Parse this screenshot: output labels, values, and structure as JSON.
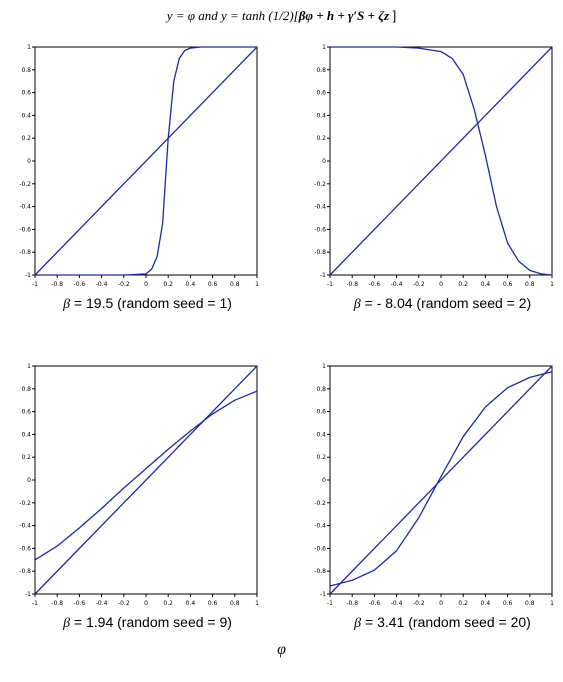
{
  "title": {
    "prefix": "y = φ and y = tanh (1/2)[",
    "expression": "βφ + h + γ′S + ζz",
    "suffix": " ]"
  },
  "x_variable": "φ",
  "colors": {
    "curve": "#1f2a9e",
    "axis": "#000000"
  },
  "chart_data": [
    {
      "type": "line",
      "beta_label": "β",
      "caption_text": " = 19.5 (random seed = 1)",
      "beta": 19.5,
      "seed": 1,
      "xlim": [
        -1,
        1
      ],
      "ylim": [
        -1,
        1
      ],
      "x_ticks": [
        "-1",
        "-0.8",
        "-0.6",
        "-0.4",
        "-0.2",
        "0",
        "0.2",
        "0.4",
        "0.6",
        "0.8",
        "1"
      ],
      "y_ticks": [
        "1",
        "0.8",
        "0.6",
        "0.4",
        "0.2",
        "0",
        "-0.2",
        "-0.4",
        "-0.6",
        "-0.8",
        "-1"
      ],
      "series": [
        {
          "x": [
            -1,
            1
          ],
          "y": [
            -1,
            1
          ]
        },
        {
          "x": [
            -1,
            -0.2,
            0,
            0.05,
            0.1,
            0.15,
            0.2,
            0.25,
            0.3,
            0.35,
            0.4,
            0.5,
            1
          ],
          "y": [
            -1,
            -1,
            -0.99,
            -0.95,
            -0.84,
            -0.55,
            0.2,
            0.7,
            0.9,
            0.97,
            0.99,
            1,
            1
          ]
        }
      ]
    },
    {
      "type": "line",
      "beta_label": "β",
      "caption_text": " = - 8.04 (random seed = 2)",
      "beta": -8.04,
      "seed": 2,
      "xlim": [
        -1,
        1
      ],
      "ylim": [
        -1,
        1
      ],
      "x_ticks": [
        "-1",
        "-0.8",
        "-0.6",
        "-0.4",
        "-0.2",
        "0",
        "0.2",
        "0.4",
        "0.6",
        "0.8",
        "1"
      ],
      "y_ticks": [
        "1",
        "0.8",
        "0.6",
        "0.4",
        "0.2",
        "0",
        "-0.2",
        "-0.4",
        "-0.6",
        "-0.8",
        "-1"
      ],
      "series": [
        {
          "x": [
            -1,
            1
          ],
          "y": [
            -1,
            1
          ]
        },
        {
          "x": [
            -1,
            -0.4,
            -0.2,
            0,
            0.1,
            0.2,
            0.3,
            0.4,
            0.5,
            0.6,
            0.7,
            0.8,
            0.9,
            1
          ],
          "y": [
            1,
            1,
            0.99,
            0.96,
            0.9,
            0.76,
            0.45,
            0.05,
            -0.4,
            -0.72,
            -0.88,
            -0.96,
            -0.99,
            -1
          ]
        }
      ]
    },
    {
      "type": "line",
      "beta_label": "β",
      "caption_text": " = 1.94 (random seed = 9)",
      "beta": 1.94,
      "seed": 9,
      "xlim": [
        -1,
        1
      ],
      "ylim": [
        -1,
        1
      ],
      "x_ticks": [
        "-1",
        "-0.8",
        "-0.6",
        "-0.4",
        "-0.2",
        "0",
        "0.2",
        "0.4",
        "0.6",
        "0.8",
        "1"
      ],
      "y_ticks": [
        "1",
        "0.8",
        "0.6",
        "0.4",
        "0.2",
        "0",
        "-0.2",
        "-0.4",
        "-0.6",
        "-0.8",
        "-1"
      ],
      "series": [
        {
          "x": [
            -1,
            1
          ],
          "y": [
            -1,
            1
          ]
        },
        {
          "x": [
            -1,
            -0.8,
            -0.6,
            -0.4,
            -0.2,
            0,
            0.2,
            0.4,
            0.6,
            0.8,
            1
          ],
          "y": [
            -0.7,
            -0.58,
            -0.42,
            -0.25,
            -0.07,
            0.1,
            0.27,
            0.43,
            0.58,
            0.7,
            0.78
          ]
        }
      ]
    },
    {
      "type": "line",
      "beta_label": "β",
      "caption_text": " = 3.41 (random seed = 20)",
      "beta": 3.41,
      "seed": 20,
      "xlim": [
        -1,
        1
      ],
      "ylim": [
        -1,
        1
      ],
      "x_ticks": [
        "-1",
        "-0.8",
        "-0.6",
        "-0.4",
        "-0.2",
        "0",
        "0.2",
        "0.4",
        "0.6",
        "0.8",
        "1"
      ],
      "y_ticks": [
        "1",
        "0.8",
        "0.6",
        "0.4",
        "0.2",
        "0",
        "-0.2",
        "-0.4",
        "-0.6",
        "-0.8",
        "-1"
      ],
      "series": [
        {
          "x": [
            -1,
            1
          ],
          "y": [
            -1,
            1
          ]
        },
        {
          "x": [
            -1,
            -0.8,
            -0.6,
            -0.4,
            -0.2,
            0,
            0.2,
            0.4,
            0.6,
            0.8,
            1
          ],
          "y": [
            -0.93,
            -0.88,
            -0.79,
            -0.62,
            -0.33,
            0.03,
            0.38,
            0.64,
            0.81,
            0.9,
            0.95
          ]
        }
      ]
    }
  ]
}
